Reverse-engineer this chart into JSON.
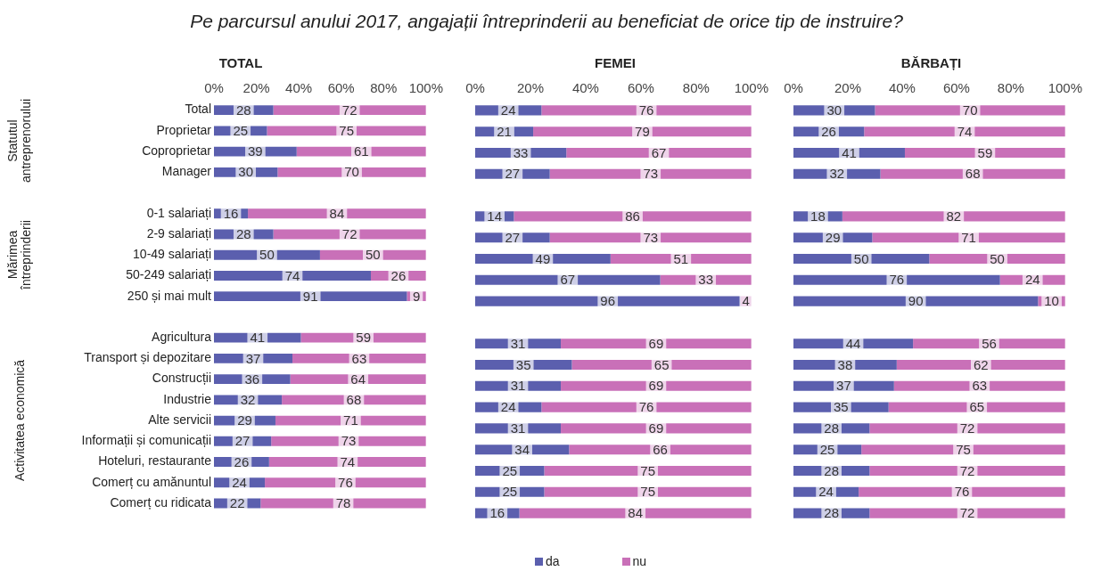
{
  "chart_data": [
    {
      "type": "bar",
      "orientation": "horizontal",
      "stacked": true,
      "title": "TOTAL",
      "categories": [
        "Total",
        "Proprietar",
        "Coproprietar",
        "Manager",
        null,
        "0-1 salariați",
        "2-9 salariați",
        "10-49 salariați",
        "50-249 salariați",
        "250 și mai mult",
        null,
        "Agricultura",
        "Transport și depozitare",
        "Construcții",
        "Industrie",
        "Alte servicii",
        "Informații și comunicații",
        "Hoteluri, restaurante",
        "Comerț cu amănuntul",
        "Comerț cu ridicata"
      ],
      "series": [
        {
          "color": "#5b5fae",
          "values": [
            28,
            25,
            39,
            30,
            null,
            16,
            28,
            50,
            74,
            91,
            null,
            41,
            37,
            36,
            32,
            29,
            27,
            26,
            24,
            22
          ]
        },
        {
          "color": "#c970b8",
          "values": [
            72,
            75,
            61,
            70,
            null,
            84,
            72,
            50,
            26,
            9,
            null,
            59,
            63,
            64,
            68,
            71,
            73,
            74,
            76,
            78
          ]
        }
      ],
      "xlim": [
        0,
        100
      ],
      "xticks": [
        {
          "value": 0,
          "label": "0%"
        },
        {
          "value": 20,
          "label": "20%"
        },
        {
          "value": 40,
          "label": "40%"
        },
        {
          "value": 60,
          "label": "60%"
        },
        {
          "value": 80,
          "label": "80%"
        },
        {
          "value": 100,
          "label": "100%"
        }
      ],
      "grid": false,
      "data_labels": true,
      "legend": false,
      "annotations": [
        "Pe parcursul anului 2017, angajații întreprinderii au beneficiat de orice tip de instruire?",
        "Statutul antreprenorului",
        "Mărimea întreprinderii",
        "Activitatea economică"
      ]
    },
    {
      "type": "bar",
      "orientation": "horizontal",
      "stacked": true,
      "title": "FEMEI",
      "categories": [
        null,
        null,
        null,
        null,
        null,
        null,
        null,
        null,
        null,
        null,
        null,
        null,
        null,
        null,
        null,
        null,
        null,
        null,
        null,
        null
      ],
      "series": [
        {
          "name": "da",
          "color": "#5b5fae",
          "values": [
            24,
            21,
            33,
            27,
            null,
            14,
            27,
            49,
            67,
            96,
            null,
            31,
            35,
            31,
            24,
            31,
            34,
            25,
            25,
            16
          ]
        },
        {
          "name": "nu",
          "color": "#c970b8",
          "values": [
            76,
            79,
            67,
            73,
            null,
            86,
            73,
            51,
            33,
            4,
            null,
            69,
            65,
            69,
            76,
            69,
            66,
            75,
            75,
            84
          ]
        }
      ],
      "xlim": [
        0,
        100
      ],
      "xticks": [
        {
          "value": 0,
          "label": "0%"
        },
        {
          "value": 20,
          "label": "20%"
        },
        {
          "value": 40,
          "label": "40%"
        },
        {
          "value": 60,
          "label": "60%"
        },
        {
          "value": 80,
          "label": "80%"
        },
        {
          "value": 100,
          "label": "100%"
        }
      ],
      "grid": false,
      "data_labels": true,
      "legend": "bottom",
      "tick_labels": "x"
    },
    {
      "type": "bar",
      "orientation": "horizontal",
      "stacked": true,
      "title": "BĂRBAȚI",
      "categories": [
        null,
        null,
        null,
        null,
        null,
        null,
        null,
        null,
        null,
        null,
        null,
        null,
        null,
        null,
        null,
        null,
        null,
        null,
        null,
        null
      ],
      "series": [
        {
          "color": "#5b5fae",
          "values": [
            30,
            26,
            41,
            32,
            null,
            18,
            29,
            50,
            76,
            90,
            null,
            44,
            38,
            37,
            35,
            28,
            25,
            28,
            24,
            28
          ]
        },
        {
          "color": "#c970b8",
          "values": [
            70,
            74,
            59,
            68,
            null,
            82,
            71,
            50,
            24,
            10,
            null,
            56,
            62,
            63,
            65,
            72,
            75,
            72,
            76,
            72
          ]
        }
      ],
      "xlim": [
        0,
        100
      ],
      "xticks": [
        {
          "value": 0,
          "label": "0%"
        },
        {
          "value": 20,
          "label": "20%"
        },
        {
          "value": 40,
          "label": "40%"
        },
        {
          "value": 60,
          "label": "60%"
        },
        {
          "value": 80,
          "label": "80%"
        },
        {
          "value": 100,
          "label": "100%"
        }
      ],
      "grid": false,
      "data_labels": true,
      "legend": false,
      "tick_labels": "x"
    }
  ]
}
